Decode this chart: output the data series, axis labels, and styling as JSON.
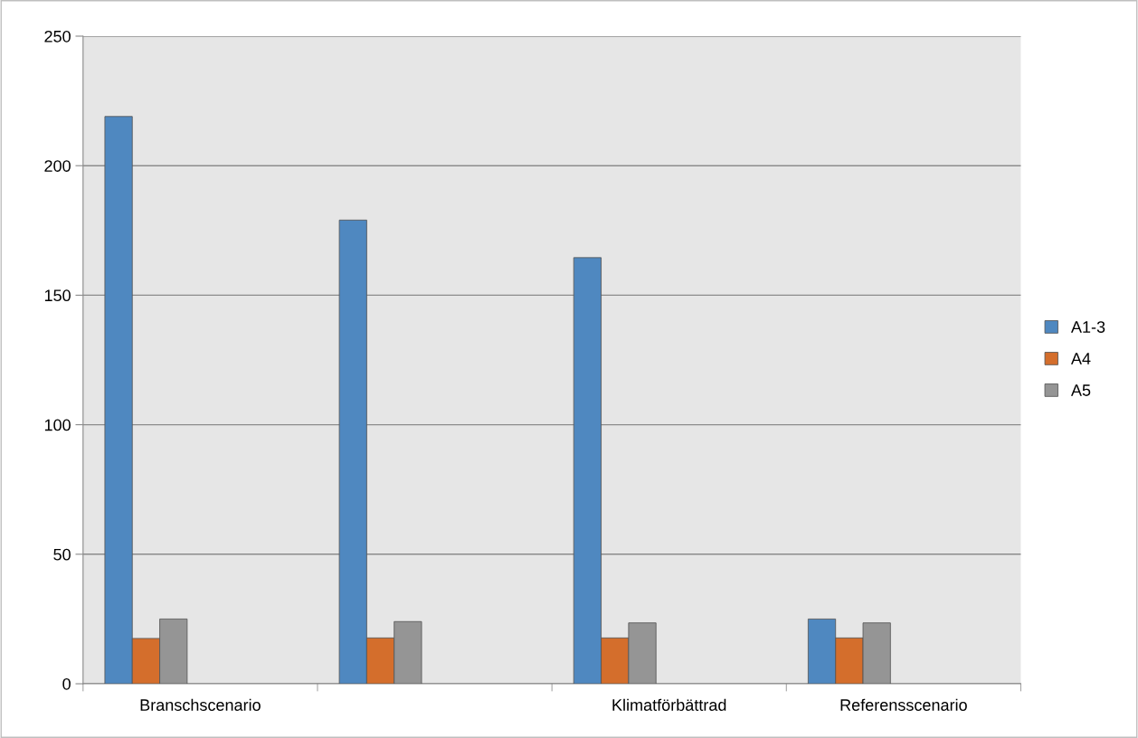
{
  "chart_data": {
    "type": "bar",
    "categories": [
      "Branschscenario",
      null,
      "Klimatförbättrad",
      "Referensscenario"
    ],
    "series": [
      {
        "name": "A1-3",
        "color": "#4f88c0",
        "values": [
          219,
          179,
          164.5,
          25
        ]
      },
      {
        "name": "A4",
        "color": "#d46e2c",
        "values": [
          17.5,
          17.7,
          17.7,
          17.7
        ]
      },
      {
        "name": "A5",
        "color": "#959595",
        "values": [
          25,
          24,
          23.5,
          23.5
        ]
      }
    ],
    "ylim": [
      0,
      250
    ],
    "yticks": [
      0,
      50,
      100,
      150,
      200,
      250
    ],
    "grid": "y",
    "legend": "right"
  }
}
